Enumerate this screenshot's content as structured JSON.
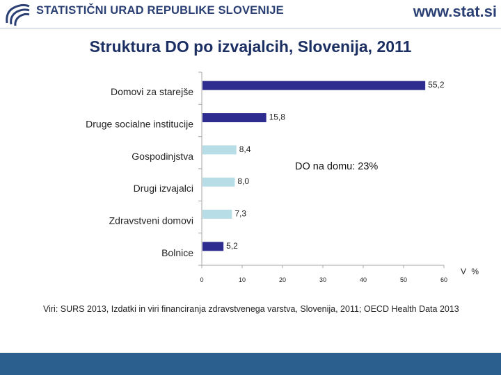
{
  "header": {
    "org_name": "STATISTIČNI URAD REPUBLIKE SLOVENIJE",
    "site_url": "www.stat.si",
    "logo_color": "#2a3f74"
  },
  "colors": {
    "dark_bar": "#2e2c8e",
    "light_bar": "#b7dde6",
    "footer": "#2a5f8e"
  },
  "chart_data": {
    "type": "bar",
    "orientation": "horizontal",
    "title": "Struktura DO po izvajalcih, Slovenija, 2011",
    "unit_label": "V %",
    "xlim": [
      0,
      60
    ],
    "xticks": [
      0,
      10,
      20,
      30,
      40,
      50,
      60
    ],
    "categories": [
      "Domovi za starejše",
      "Druge socialne institucije",
      "Gospodinjstva",
      "Drugi izvajalci",
      "Zdravstveni domovi",
      "Bolnice"
    ],
    "values": [
      55.2,
      15.8,
      8.4,
      8.0,
      7.3,
      5.2
    ],
    "value_labels": [
      "55,2",
      "15,8",
      "8,4",
      "8,0",
      "7,3",
      "5,2"
    ],
    "bar_colors": [
      "dark",
      "dark",
      "light",
      "light",
      "light",
      "dark"
    ],
    "annotation": "DO na domu: 23%"
  },
  "source": "Viri: SURS 2013, Izdatki in viri financiranja zdravstvenega varstva, Slovenija, 2011; OECD Health Data 2013"
}
